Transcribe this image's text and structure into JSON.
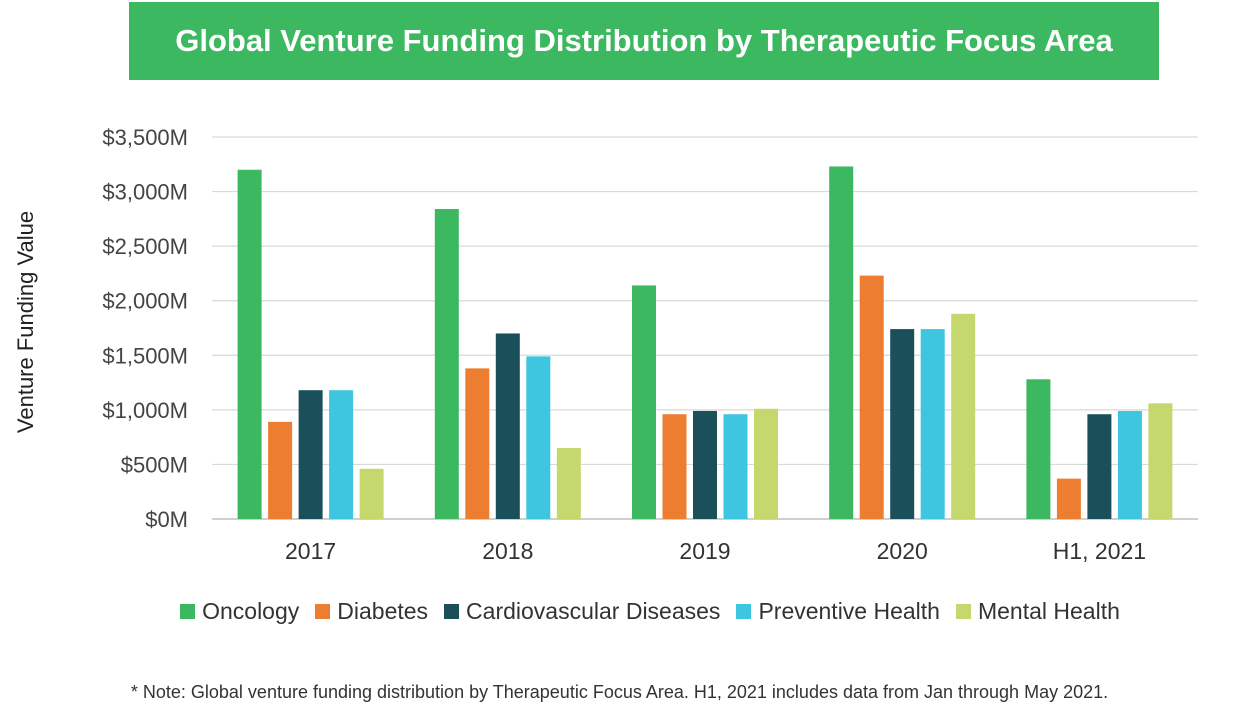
{
  "title": "Global Venture Funding Distribution by Therapeutic Focus Area",
  "note": "* Note: Global venture funding distribution by Therapeutic Focus Area. H1, 2021 includes data from Jan through May 2021.",
  "chart_data": {
    "type": "bar",
    "title": "Global Venture Funding Distribution by Therapeutic Focus Area",
    "xlabel": "",
    "ylabel": "Venture Funding Value",
    "ylim": [
      0,
      3500
    ],
    "yticks": [
      0,
      500,
      1000,
      1500,
      2000,
      2500,
      3000,
      3500
    ],
    "ytick_labels": [
      "$0M",
      "$500M",
      "$1,000M",
      "$1,500M",
      "$2,000M",
      "$2,500M",
      "$3,000M",
      "$3,500M"
    ],
    "grid": true,
    "legend_position": "bottom",
    "categories": [
      "2017",
      "2018",
      "2019",
      "2020",
      "H1, 2021"
    ],
    "series": [
      {
        "name": "Oncology",
        "color": "#3cb860",
        "values": [
          3200,
          2840,
          2140,
          3230,
          1280
        ]
      },
      {
        "name": "Diabetes",
        "color": "#ed7d31",
        "values": [
          890,
          1380,
          960,
          2230,
          370
        ]
      },
      {
        "name": "Cardiovascular Diseases",
        "color": "#1b4f5a",
        "values": [
          1180,
          1700,
          990,
          1740,
          960
        ]
      },
      {
        "name": "Preventive Health",
        "color": "#3ec6e0",
        "values": [
          1180,
          1490,
          960,
          1740,
          990
        ]
      },
      {
        "name": "Mental Health",
        "color": "#c5d86d",
        "values": [
          460,
          650,
          1010,
          1880,
          1060
        ]
      }
    ]
  }
}
